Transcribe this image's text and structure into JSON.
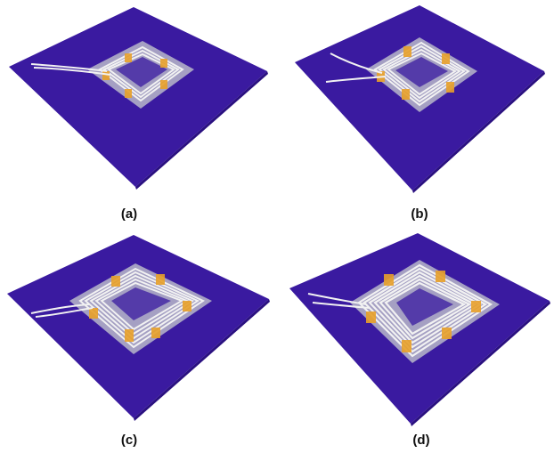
{
  "figure": {
    "panels": [
      {
        "label": "(a)"
      },
      {
        "label": "(b)"
      },
      {
        "label": "(c)"
      },
      {
        "label": "(d)"
      }
    ]
  },
  "colors": {
    "background": "#ffffff",
    "board": "#3a1aa0",
    "board_edge": "#2a1080",
    "substrate": "#b9b9c9",
    "wire": "#f2f2f2",
    "tape": "#e8a02a"
  }
}
